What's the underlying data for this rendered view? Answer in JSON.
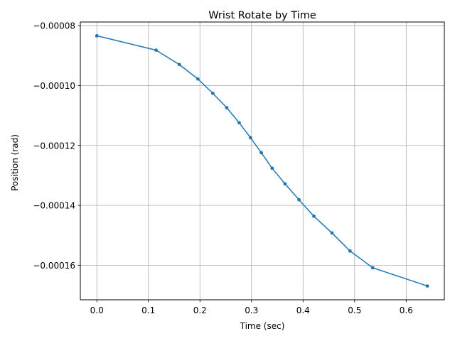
{
  "chart_data": {
    "type": "line",
    "title": "Wrist Rotate by Time",
    "xlabel": "Time (sec)",
    "ylabel": "Position (rad)",
    "xlim": [
      -0.032,
      0.674
    ],
    "ylim": [
      -0.0001715,
      -7.88e-05
    ],
    "xticks": [
      0.0,
      0.1,
      0.2,
      0.3,
      0.4,
      0.5,
      0.6
    ],
    "xtick_labels": [
      "0.0",
      "0.1",
      "0.2",
      "0.3",
      "0.4",
      "0.5",
      "0.6"
    ],
    "yticks": [
      -8e-05,
      -0.0001,
      -0.00012,
      -0.00014,
      -0.00016
    ],
    "ytick_labels": [
      "−0.00008",
      "−0.00010",
      "−0.00012",
      "−0.00014",
      "−0.00016"
    ],
    "grid": true,
    "line_color": "#1f77b4",
    "series": [
      {
        "x": [
          0.0,
          0.115,
          0.16,
          0.196,
          0.225,
          0.252,
          0.276,
          0.298,
          0.319,
          0.34,
          0.365,
          0.392,
          0.421,
          0.456,
          0.491,
          0.535,
          0.641
        ],
        "y": [
          -8.34e-05,
          -8.82e-05,
          -9.3e-05,
          -9.78e-05,
          -0.0001026,
          -0.0001074,
          -0.0001124,
          -0.0001174,
          -0.0001224,
          -0.0001276,
          -0.0001328,
          -0.0001381,
          -0.0001436,
          -0.0001492,
          -0.0001552,
          -0.0001608,
          -0.0001669
        ]
      }
    ]
  }
}
